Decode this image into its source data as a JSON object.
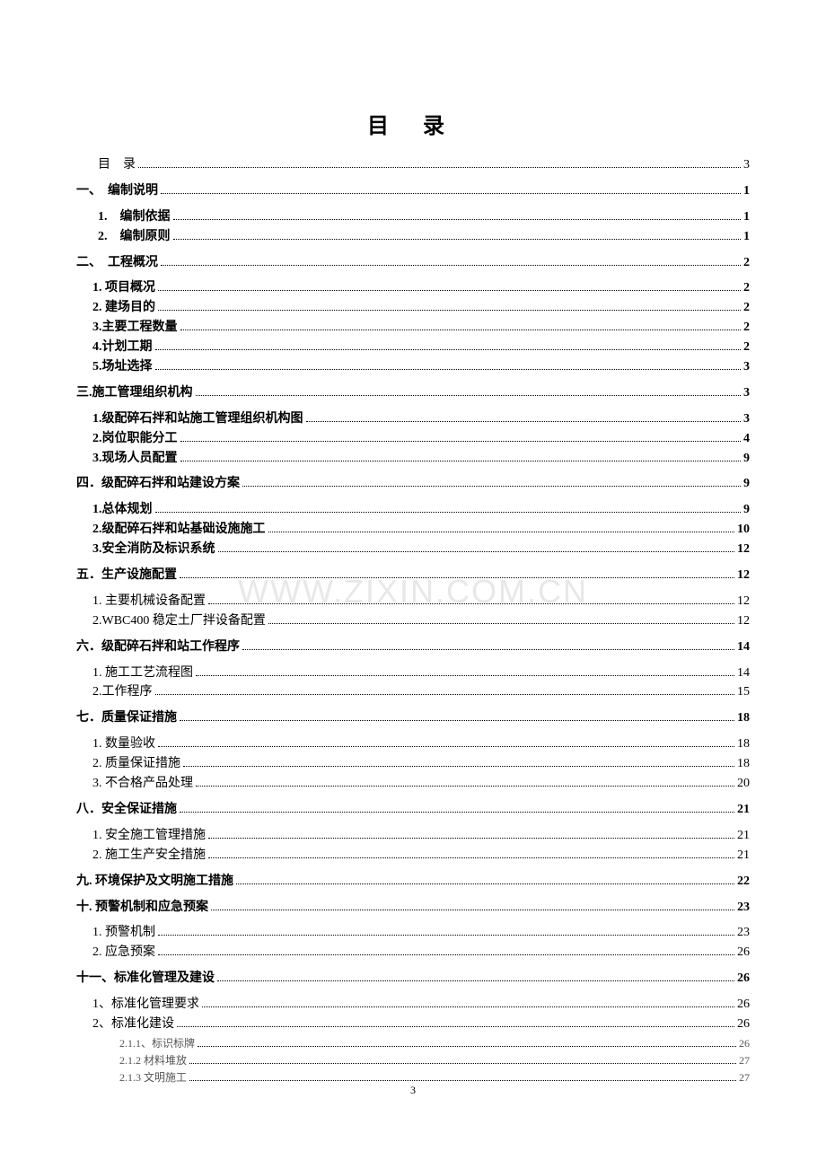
{
  "title": "目 录",
  "watermark": "WWW.ZIXIN.COM.CN",
  "page_number": "3",
  "toc": [
    {
      "label": "目　录",
      "page": "3",
      "level": "0-first",
      "bold": false
    },
    {
      "label": "一、　编制说明",
      "page": "1",
      "level": "0",
      "bold": true,
      "gap": true
    },
    {
      "label": "1.　编制依据",
      "page": "1",
      "level": "1",
      "bold": true,
      "gap": true
    },
    {
      "label": "2.　编制原则",
      "page": "1",
      "level": "1",
      "bold": true
    },
    {
      "label": "二、　工程概况",
      "page": "2",
      "level": "0",
      "bold": true,
      "gap": true
    },
    {
      "label": "1. 项目概况",
      "page": "2",
      "level": "1b",
      "bold": true,
      "gap": true
    },
    {
      "label": "2. 建场目的",
      "page": "2",
      "level": "1b",
      "bold": true
    },
    {
      "label": "3.主要工程数量",
      "page": "2",
      "level": "1b",
      "bold": true
    },
    {
      "label": "4.计划工期",
      "page": "2",
      "level": "1b",
      "bold": true
    },
    {
      "label": "5.场址选择",
      "page": "3",
      "level": "1b",
      "bold": true
    },
    {
      "label": "三.施工管理组织机构",
      "page": "3",
      "level": "0",
      "bold": true,
      "gap": true
    },
    {
      "label": "1.级配碎石拌和站施工管理组织机构图",
      "page": "3",
      "level": "1b",
      "bold": true,
      "gap": true
    },
    {
      "label": "2.岗位职能分工",
      "page": "4",
      "level": "1b",
      "bold": true
    },
    {
      "label": "3.现场人员配置",
      "page": "9",
      "level": "1b",
      "bold": true
    },
    {
      "label": "四．级配碎石拌和站建设方案",
      "page": "9",
      "level": "0",
      "bold": true,
      "gap": true
    },
    {
      "label": "1.总体规划",
      "page": "9",
      "level": "1b",
      "bold": true,
      "gap": true
    },
    {
      "label": "2.级配碎石拌和站基础设施施工",
      "page": "10",
      "level": "1b",
      "bold": true
    },
    {
      "label": "3.安全消防及标识系统",
      "page": "12",
      "level": "1b",
      "bold": true
    },
    {
      "label": "五．生产设施配置",
      "page": "12",
      "level": "0",
      "bold": true,
      "gap": true
    },
    {
      "label": "1. 主要机械设备配置",
      "page": "12",
      "level": "1b",
      "bold": false,
      "gap": true
    },
    {
      "label": "2.WBC400 稳定土厂拌设备配置",
      "page": "12",
      "level": "1b",
      "bold": false
    },
    {
      "label": "六．级配碎石拌和站工作程序",
      "page": "14",
      "level": "0",
      "bold": true,
      "gap": true
    },
    {
      "label": "1. 施工工艺流程图",
      "page": "14",
      "level": "1b",
      "bold": false,
      "gap": true
    },
    {
      "label": "2.工作程序",
      "page": "15",
      "level": "1b",
      "bold": false
    },
    {
      "label": "七．质量保证措施",
      "page": "18",
      "level": "0",
      "bold": true,
      "gap": true
    },
    {
      "label": "1. 数量验收",
      "page": "18",
      "level": "1b",
      "bold": false,
      "gap": true
    },
    {
      "label": "2. 质量保证措施",
      "page": "18",
      "level": "1b",
      "bold": false
    },
    {
      "label": "3. 不合格产品处理",
      "page": "20",
      "level": "1b",
      "bold": false
    },
    {
      "label": "八．安全保证措施",
      "page": "21",
      "level": "0",
      "bold": true,
      "gap": true
    },
    {
      "label": "1. 安全施工管理措施",
      "page": "21",
      "level": "1b",
      "bold": false,
      "gap": true
    },
    {
      "label": "2. 施工生产安全措施",
      "page": "21",
      "level": "1b",
      "bold": false
    },
    {
      "label": "九. 环境保护及文明施工措施",
      "page": "22",
      "level": "0",
      "bold": true,
      "gap": true
    },
    {
      "label": "十. 预警机制和应急预案",
      "page": "23",
      "level": "0",
      "bold": true,
      "gap": true
    },
    {
      "label": "1. 预警机制",
      "page": "23",
      "level": "1b",
      "bold": false,
      "gap": true
    },
    {
      "label": "2. 应急预案",
      "page": "26",
      "level": "1b",
      "bold": false
    },
    {
      "label": "十一、标准化管理及建设",
      "page": "26",
      "level": "0",
      "bold": true,
      "gap": true
    },
    {
      "label": "1、标准化管理要求",
      "page": "26",
      "level": "1b",
      "bold": false,
      "gap": true
    },
    {
      "label": "2、标准化建设",
      "page": "26",
      "level": "1b",
      "bold": false
    },
    {
      "label": "2.1.1、标识标牌",
      "page": "26",
      "level": "2",
      "bold": false
    },
    {
      "label": "2.1.2 材料堆放",
      "page": "27",
      "level": "2",
      "bold": false
    },
    {
      "label": "2.1.3 文明施工",
      "page": "27",
      "level": "2",
      "bold": false
    }
  ]
}
